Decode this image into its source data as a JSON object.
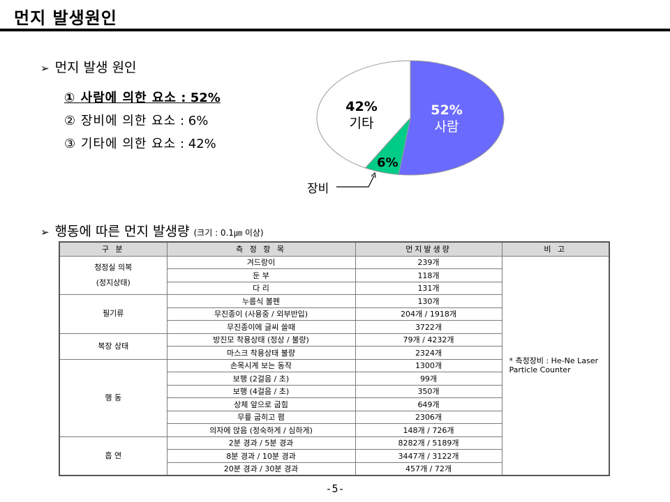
{
  "header": {
    "title": "먼지 발생원인"
  },
  "section1": {
    "heading": "먼지 발생 원인",
    "causes": [
      {
        "label": "① 사람에 의한 요소",
        "value": ": 52%"
      },
      {
        "label": "② 장비에 의한 요소",
        "value": ": 6%"
      },
      {
        "label": "③ 기타에 의한 요소",
        "value": ": 42%"
      }
    ]
  },
  "pie": {
    "slices": [
      {
        "label": "사람",
        "pct_text": "52%",
        "value": 52,
        "color": "#6a6aff"
      },
      {
        "label": "장비",
        "pct_text": "6%",
        "value": 6,
        "color": "#00cc88"
      },
      {
        "label": "기타",
        "pct_text": "42%",
        "value": 42,
        "color": "#ffffff"
      }
    ]
  },
  "section2": {
    "heading": "행동에 따른 먼지 발생량",
    "subheading": "(크기 : 0.1㎛ 이상)"
  },
  "table": {
    "headers": [
      "구 분",
      "측 정 항 목",
      "먼지발생량",
      "비 고"
    ],
    "groups": [
      {
        "category": [
          "청정실 의복",
          "(정지상태)"
        ],
        "rows": [
          [
            "겨드랑이",
            "239개"
          ],
          [
            "둔 부",
            "118개"
          ],
          [
            "다 리",
            "131개"
          ]
        ]
      },
      {
        "category": [
          "필기류"
        ],
        "rows": [
          [
            "누름식 볼펜",
            "130개"
          ],
          [
            "무진종이 (사용중 / 외부반입)",
            "204개 / 1918개"
          ],
          [
            "무진종이에 글씨 쓸때",
            "3722개"
          ]
        ]
      },
      {
        "category": [
          "복장 상태"
        ],
        "rows": [
          [
            "방진모 착용상태 (정상 / 불량)",
            "79개 / 4232개"
          ],
          [
            "마스크 착용상태 불량",
            "2324개"
          ]
        ]
      },
      {
        "category": [
          "행 동"
        ],
        "rows": [
          [
            "손목시계 보는 동작",
            "1300개"
          ],
          [
            "보행 (2걸음 / 초)",
            "99개"
          ],
          [
            "보행 (4걸음 / 초)",
            "350개"
          ],
          [
            "상체 앞으로 굽힘",
            "649개"
          ],
          [
            "무릎 굽히고 폄",
            "2306개"
          ],
          [
            "의자에 앉음 (정숙하게 / 심하게)",
            "148개 / 726개"
          ]
        ]
      },
      {
        "category": [
          "흡 연"
        ],
        "rows": [
          [
            "2분 경과 / 5분 경과",
            "8282개 / 5189개"
          ],
          [
            "8분 경과 / 10분 경과",
            "3447개 / 3122개"
          ],
          [
            "20분 경과 / 30분 경과",
            "457개 / 72개"
          ]
        ]
      }
    ],
    "note": "* 측정장비 : He-Ne Laser Particle Counter"
  },
  "footer": {
    "page": "-5-"
  }
}
